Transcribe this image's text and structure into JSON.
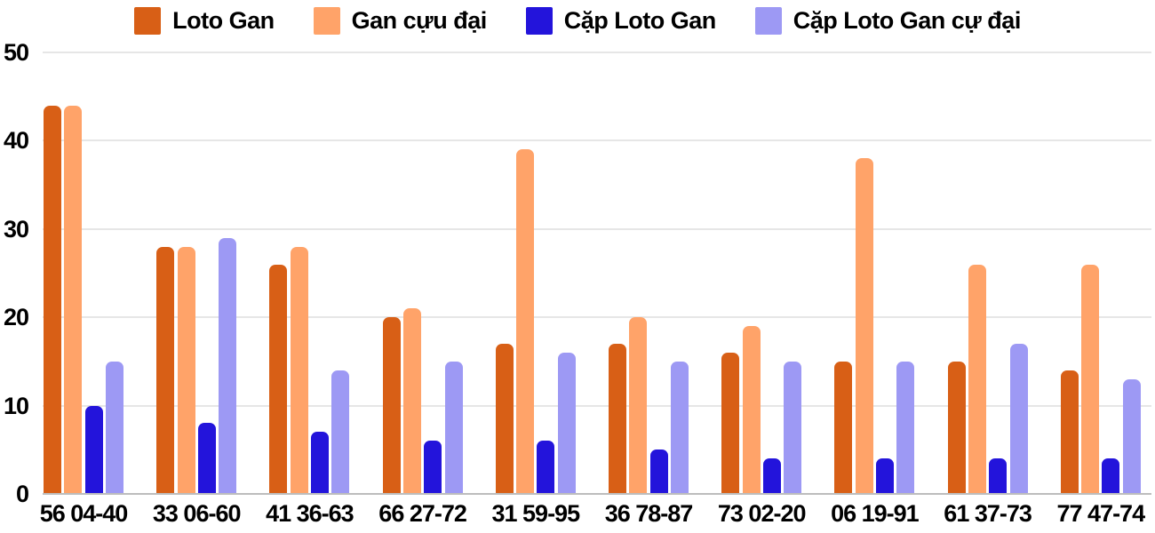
{
  "chart_data": {
    "type": "bar",
    "title": "",
    "xlabel": "",
    "ylabel": "",
    "categories": [
      "56 04-40",
      "33 06-60",
      "41 36-63",
      "66 27-72",
      "31 59-95",
      "36 78-87",
      "73 02-20",
      "06 19-91",
      "61 37-73",
      "77 47-74"
    ],
    "series": [
      {
        "name": "Loto Gan",
        "color": "#d85f16",
        "values": [
          44,
          28,
          26,
          20,
          17,
          17,
          16,
          15,
          15,
          14
        ]
      },
      {
        "name": "Gan cựu đại",
        "color": "#ffa369",
        "values": [
          44,
          28,
          28,
          21,
          39,
          20,
          19,
          38,
          26,
          26
        ]
      },
      {
        "name": "Cặp Loto Gan",
        "color": "#2314db",
        "values": [
          10,
          8,
          7,
          6,
          6,
          5,
          4,
          4,
          4,
          4
        ]
      },
      {
        "name": "Cặp Loto Gan cự đại",
        "color": "#9d99f4",
        "values": [
          15,
          29,
          14,
          15,
          16,
          15,
          15,
          15,
          17,
          13
        ]
      }
    ],
    "ylim": [
      0,
      50
    ],
    "yticks": [
      "0",
      "10",
      "20",
      "30",
      "40",
      "50"
    ],
    "grid": true,
    "legend_position": "top",
    "colors": {
      "gridline": "#e6e6e6",
      "baseline": "#bdbdbd",
      "text": "#000000",
      "background": "#ffffff"
    }
  }
}
